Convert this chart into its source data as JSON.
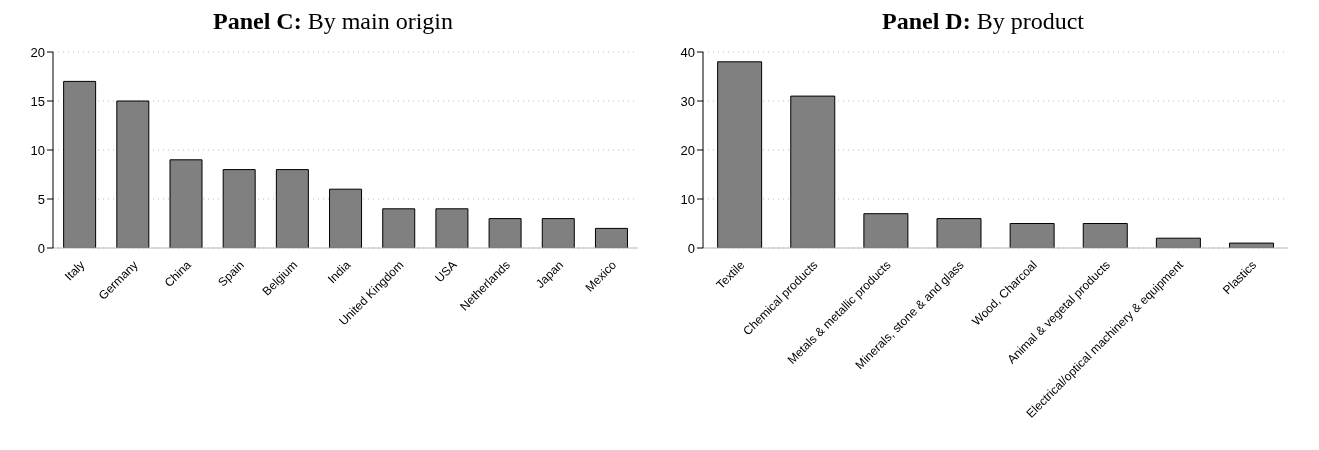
{
  "chart_data": [
    {
      "type": "bar",
      "title": "Panel C: By main origin",
      "categories": [
        "Italy",
        "Germany",
        "China",
        "Spain",
        "Belgium",
        "India",
        "United Kingdom",
        "USA",
        "Netherlands",
        "Japan",
        "Mexico"
      ],
      "values": [
        17,
        15,
        9,
        8,
        8,
        6,
        4,
        4,
        3,
        3,
        2
      ],
      "color": "#808080",
      "ylim": [
        0,
        20
      ],
      "yticks": [
        0,
        5,
        10,
        15,
        20
      ],
      "grid": "y"
    },
    {
      "type": "bar",
      "title": "Panel D: By product",
      "categories": [
        "Textile",
        "Chemical products",
        "Metals & metallic products",
        "Minerals, stone & and glass",
        "Wood, Charcoal",
        "Animal & vegetal products",
        "Electrical/optical machinery & equipment",
        "Plastics"
      ],
      "values": [
        38,
        31,
        7,
        6,
        5,
        5,
        2,
        1
      ],
      "color": "#808080",
      "ylim": [
        0,
        40
      ],
      "yticks": [
        0,
        10,
        20,
        30,
        40
      ],
      "grid": "y"
    }
  ]
}
